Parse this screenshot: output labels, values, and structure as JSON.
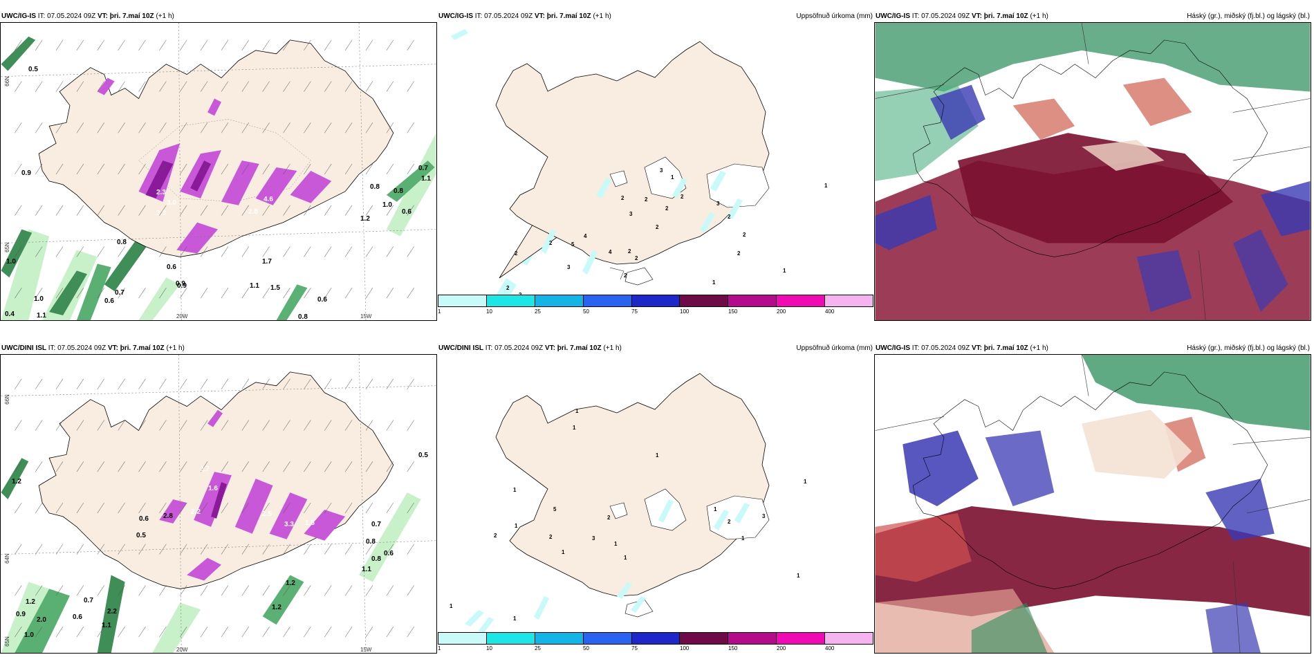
{
  "rows": [
    {
      "model": "UWC/IG-IS",
      "it_label": "IT:",
      "it_value": "07.05.2024 09Z",
      "vt_label": "VT:",
      "vt_value": "þri. 7.maí 10Z",
      "lead": "(+1 h)",
      "precip_model": "UWC/IG-IS",
      "cloud_model": "UWC/IG-IS"
    },
    {
      "model": "UWC/DINI ISL",
      "it_label": "IT:",
      "it_value": "07.05.2024 09Z",
      "vt_label": "VT:",
      "vt_value": "þri. 7.maí 10Z",
      "lead": "(+1 h)",
      "precip_model": "UWC/DINI ISL",
      "cloud_model": "UWC/IG-IS"
    }
  ],
  "precip_panel_title": "Uppsöfnuð úrkoma (mm)",
  "cloud_panel_title": "Háský (gr.), miðský (fj.bl.) og lágský (bl.)",
  "colorbar": {
    "ticks": [
      "1",
      "10",
      "25",
      "50",
      "75",
      "100",
      "150",
      "200",
      "400"
    ],
    "colors": [
      "#c8fafa",
      "#1fe6e6",
      "#14b4e6",
      "#2864f0",
      "#1e28c8",
      "#6e0a46",
      "#b40a8c",
      "#f00ab4",
      "#f5b4f0"
    ]
  },
  "axis_labels": {
    "lat_66": "66N",
    "lat_64": "64N",
    "lat_65": "65N",
    "lon_20": "20W",
    "lon_15": "15W"
  },
  "wind_panel_values": {
    "row1": [
      "0.5",
      "0.9",
      "1.0",
      "0.4",
      "1.0",
      "1.1",
      "0.6",
      "0.7",
      "0.8",
      "0.6",
      "0.9",
      "1.1",
      "1.5",
      "1.7",
      "0.9",
      "0.8",
      "0.6",
      "0.8",
      "0.7",
      "1.1",
      "1.0",
      "0.6",
      "1.2",
      "0.8",
      "2.3",
      "3.0",
      "3.3",
      "1.6",
      "2.8",
      "4.6"
    ],
    "row2": [
      "1.2",
      "0.5",
      "0.9",
      "1.2",
      "2.0",
      "1.0",
      "0.7",
      "0.6",
      "2.2",
      "1.1",
      "1.2",
      "1.2",
      "0.8",
      "0.6",
      "0.7",
      "0.8",
      "1.1",
      "0.5",
      "1.6",
      "2.2",
      "2.7",
      "3.3",
      "2.5",
      "1.5",
      "0.6",
      "2.8"
    ]
  },
  "precip_values": {
    "row1": [
      "1",
      "2",
      "2",
      "2",
      "2",
      "5",
      "4",
      "3",
      "4",
      "2",
      "2",
      "3",
      "2",
      "3",
      "1",
      "2",
      "2",
      "2",
      "2",
      "2",
      "3",
      "2",
      "2",
      "1",
      "1",
      "2",
      "1"
    ],
    "row2": [
      "1",
      "1",
      "1",
      "1",
      "2",
      "1",
      "1",
      "5",
      "2",
      "1",
      "2",
      "1",
      "3",
      "2",
      "1",
      "1",
      "1",
      "2",
      "1",
      "3",
      "1",
      "1"
    ]
  },
  "colors": {
    "land": "#f8ede0",
    "land_dark": "#efe2cf",
    "sea": "#ffffff",
    "magenta": "#c858d8",
    "purple_dark": "#8a1a9a",
    "green_light": "#bfeec0",
    "green_dark": "#1e7a3a",
    "cyan_light": "#c8fafa",
    "cloud_high": "#2a8c5a",
    "cloud_mid": "#8c1a3a",
    "cloud_low": "#3a3ab4"
  }
}
